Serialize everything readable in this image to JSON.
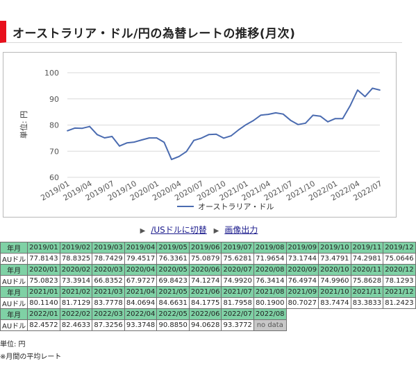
{
  "title": "オーストラリア・ドル/円の為替レートの推移(月次)",
  "chart_data": {
    "type": "line",
    "ylabel": "単位: 円",
    "ylim": [
      60,
      100
    ],
    "yticks": [
      60,
      70,
      80,
      90,
      100
    ],
    "xtick_labels": [
      "2019/01",
      "2019/04",
      "2019/07",
      "2019/10",
      "2020/01",
      "2020/04",
      "2020/07",
      "2020/10",
      "2021/01",
      "2021/04",
      "2021/07",
      "2021/10",
      "2022/01",
      "2022/04",
      "2022/07"
    ],
    "x": [
      "2019/01",
      "2019/02",
      "2019/03",
      "2019/04",
      "2019/05",
      "2019/06",
      "2019/07",
      "2019/08",
      "2019/09",
      "2019/10",
      "2019/11",
      "2019/12",
      "2020/01",
      "2020/02",
      "2020/03",
      "2020/04",
      "2020/05",
      "2020/06",
      "2020/07",
      "2020/08",
      "2020/09",
      "2020/10",
      "2020/11",
      "2020/12",
      "2021/01",
      "2021/02",
      "2021/03",
      "2021/04",
      "2021/05",
      "2021/06",
      "2021/07",
      "2021/08",
      "2021/09",
      "2021/10",
      "2021/11",
      "2021/12",
      "2022/01",
      "2022/02",
      "2022/03",
      "2022/04",
      "2022/05",
      "2022/06",
      "2022/07"
    ],
    "series": [
      {
        "name": "オーストラリア・ドル",
        "color": "#4a6bb0",
        "values": [
          77.8143,
          78.8325,
          78.7429,
          79.4517,
          76.3361,
          75.0879,
          75.6281,
          71.9654,
          73.1744,
          73.4791,
          74.2981,
          75.0646,
          75.0823,
          73.3914,
          66.8352,
          67.9727,
          69.8423,
          74.1274,
          74.992,
          76.3414,
          76.4974,
          74.996,
          75.8628,
          78.1293,
          80.114,
          81.7129,
          83.7778,
          84.0694,
          84.6631,
          84.1775,
          81.7958,
          80.19,
          80.7027,
          83.7474,
          83.3833,
          81.2423,
          82.4572,
          82.4633,
          87.3256,
          93.3748,
          90.885,
          94.0628,
          93.3772
        ]
      }
    ],
    "legend": "bottom",
    "grid": true
  },
  "links": {
    "usd_switch": "/USドルに切替",
    "image_output": "画像出力"
  },
  "table": {
    "header_label": "年月",
    "row_label": "AUドル",
    "blocks": [
      {
        "months": [
          "2019/01",
          "2019/02",
          "2019/03",
          "2019/04",
          "2019/05",
          "2019/06",
          "2019/07",
          "2019/08",
          "2019/09",
          "2019/10",
          "2019/11",
          "2019/12"
        ],
        "values": [
          "77.8143",
          "78.8325",
          "78.7429",
          "79.4517",
          "76.3361",
          "75.0879",
          "75.6281",
          "71.9654",
          "73.1744",
          "73.4791",
          "74.2981",
          "75.0646"
        ]
      },
      {
        "months": [
          "2020/01",
          "2020/02",
          "2020/03",
          "2020/04",
          "2020/05",
          "2020/06",
          "2020/07",
          "2020/08",
          "2020/09",
          "2020/10",
          "2020/11",
          "2020/12"
        ],
        "values": [
          "75.0823",
          "73.3914",
          "66.8352",
          "67.9727",
          "69.8423",
          "74.1274",
          "74.9920",
          "76.3414",
          "76.4974",
          "74.9960",
          "75.8628",
          "78.1293"
        ]
      },
      {
        "months": [
          "2021/01",
          "2021/02",
          "2021/03",
          "2021/04",
          "2021/05",
          "2021/06",
          "2021/07",
          "2021/08",
          "2021/09",
          "2021/10",
          "2021/11",
          "2021/12"
        ],
        "values": [
          "80.1140",
          "81.7129",
          "83.7778",
          "84.0694",
          "84.6631",
          "84.1775",
          "81.7958",
          "80.1900",
          "80.7027",
          "83.7474",
          "83.3833",
          "81.2423"
        ]
      },
      {
        "months": [
          "2022/01",
          "2022/02",
          "2022/03",
          "2022/04",
          "2022/05",
          "2022/06",
          "2022/07",
          "2022/08"
        ],
        "values": [
          "82.4572",
          "82.4633",
          "87.3256",
          "93.3748",
          "90.8850",
          "94.0628",
          "93.3772",
          "no data"
        ]
      }
    ]
  },
  "notes": {
    "unit": "単位: 円",
    "average": "※月間の平均レート"
  }
}
